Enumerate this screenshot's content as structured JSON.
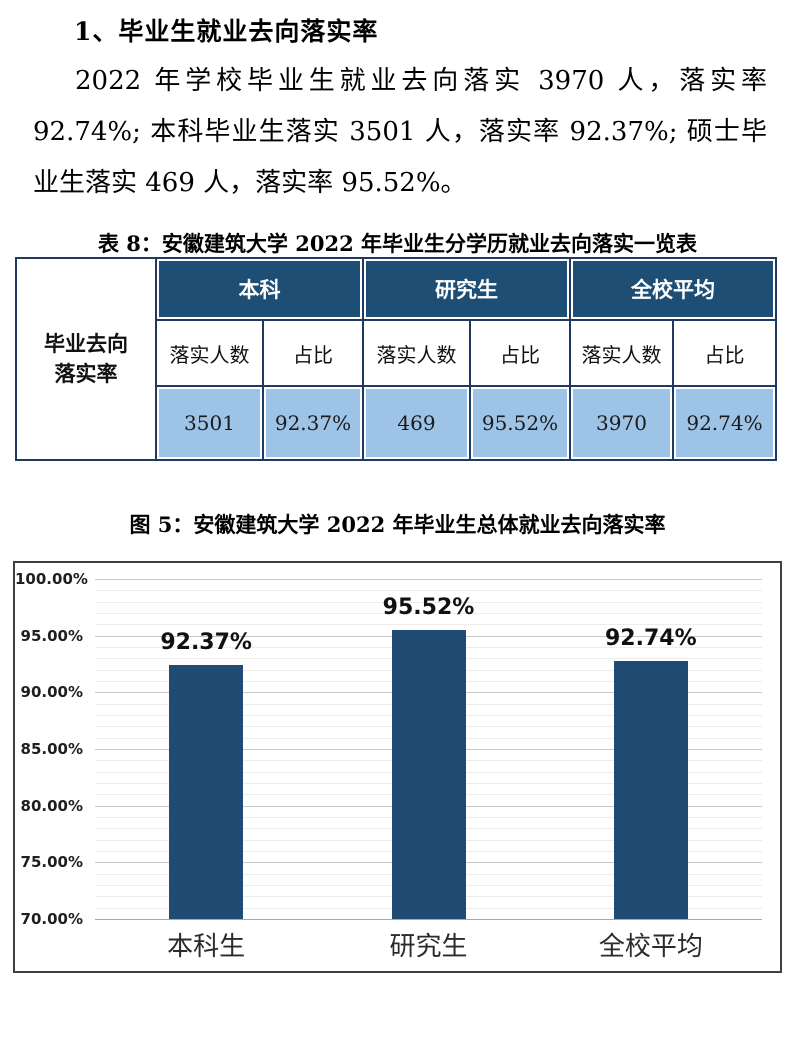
{
  "document": {
    "heading": "1、毕业生就业去向落实率",
    "paragraph_lines": [
      "2022 年学校毕业生就业去向落实 3970 人，落实率",
      "92.74%; 本科毕业生落实 3501 人，落实率 92.37%; 硕士毕",
      "业生落实 469 人，落实率 95.52%。"
    ]
  },
  "table": {
    "title": "表 8：安徽建筑大学 2022 年毕业生分学历就业去向落实一览表",
    "left_header_line1": "毕业去向",
    "left_header_line2": "落实率",
    "groups": [
      {
        "label": "本科",
        "count_header": "落实人数",
        "ratio_header": "占比",
        "count": "3501",
        "ratio": "92.37%"
      },
      {
        "label": "研究生",
        "count_header": "落实人数",
        "ratio_header": "占比",
        "count": "469",
        "ratio": "95.52%"
      },
      {
        "label": "全校平均",
        "count_header": "落实人数",
        "ratio_header": "占比",
        "count": "3970",
        "ratio": "92.74%"
      }
    ],
    "colors": {
      "header_bg": "#1E4E74",
      "data_row_bg": "#9DC3E6",
      "border": "#1F3864"
    }
  },
  "figure": {
    "title": "图 5：安徽建筑大学 2022 年毕业生总体就业去向落实率"
  },
  "chart_data": {
    "type": "bar",
    "title": "图 5：安徽建筑大学 2022 年毕业生总体就业去向落实率",
    "categories": [
      "本科生",
      "研究生",
      "全校平均"
    ],
    "values": [
      92.37,
      95.52,
      92.74
    ],
    "value_labels": [
      "92.37%",
      "95.52%",
      "92.74%"
    ],
    "ylim": [
      70,
      100
    ],
    "ytick_step": 5,
    "ytick_labels": [
      "100.00%",
      "95.00%",
      "90.00%",
      "85.00%",
      "80.00%",
      "75.00%",
      "70.00%"
    ],
    "minor_grid_step": 1,
    "grid": true,
    "legend": "none",
    "xlabel": "",
    "ylabel": "",
    "bar_color": "#204C73"
  }
}
